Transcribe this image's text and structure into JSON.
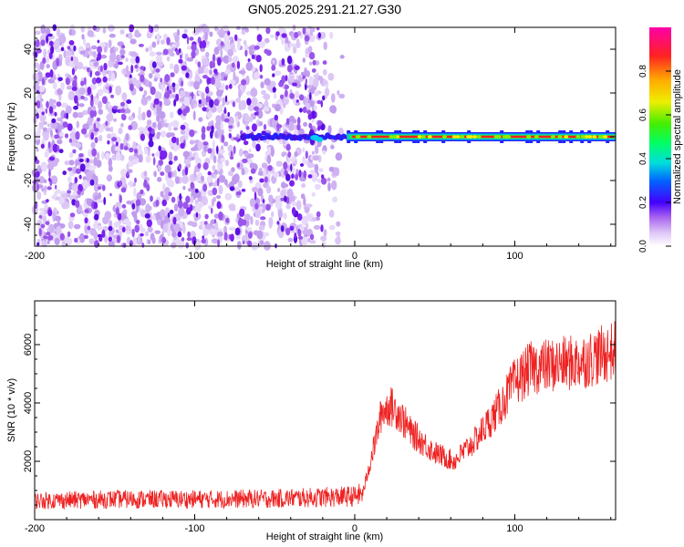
{
  "title": "GN05.2025.291.21.27.G30",
  "colors": {
    "snr_line": "#ee2222",
    "cmap": [
      "#ffffff",
      "#c8a8f0",
      "#8822ee",
      "#2222ff",
      "#00aaff",
      "#00e0e0",
      "#00d040",
      "#88e000",
      "#ffee00",
      "#ff9900",
      "#ff2020",
      "#ff00aa"
    ]
  },
  "chart_data": [
    {
      "type": "heatmap",
      "name": "spectrogram",
      "xlabel": "Height of straight line (km)",
      "ylabel": "Frequency (Hz)",
      "xlim": [
        -200,
        163
      ],
      "ylim": [
        -50,
        50
      ],
      "xticks": [
        -200,
        -100,
        0,
        100
      ],
      "yticks": [
        -40,
        -20,
        0,
        20,
        40
      ],
      "noise_region_x": [
        -200,
        -10
      ],
      "signal_line": {
        "frequency": 0,
        "x_start": -70,
        "x_end": 163,
        "strong_from_x": -5
      },
      "colorbar": {
        "label": "Normalized spectral amplitude",
        "range": [
          0,
          1
        ],
        "ticks": [
          "0.0",
          "0.2",
          "0.4",
          "0.6",
          "0.8"
        ],
        "tick_values": [
          0.0,
          0.2,
          0.4,
          0.6,
          0.8
        ]
      }
    },
    {
      "type": "line",
      "name": "snr",
      "xlabel": "Height of straight line (km)",
      "ylabel": "SNR (10 * v/v)",
      "xlim": [
        -200,
        163
      ],
      "ylim": [
        0,
        7500
      ],
      "xticks": [
        -200,
        -100,
        0,
        100
      ],
      "yticks": [
        2000,
        4000,
        6000
      ],
      "trend": [
        [
          -200,
          650
        ],
        [
          -150,
          700
        ],
        [
          -100,
          700
        ],
        [
          -50,
          720
        ],
        [
          0,
          800
        ],
        [
          5,
          900
        ],
        [
          12,
          2500
        ],
        [
          17,
          3700
        ],
        [
          22,
          3900
        ],
        [
          27,
          3700
        ],
        [
          35,
          3000
        ],
        [
          50,
          2300
        ],
        [
          62,
          2000
        ],
        [
          75,
          2700
        ],
        [
          90,
          3800
        ],
        [
          100,
          4700
        ],
        [
          110,
          5200
        ],
        [
          125,
          5300
        ],
        [
          140,
          5400
        ],
        [
          163,
          5800
        ]
      ]
    }
  ]
}
